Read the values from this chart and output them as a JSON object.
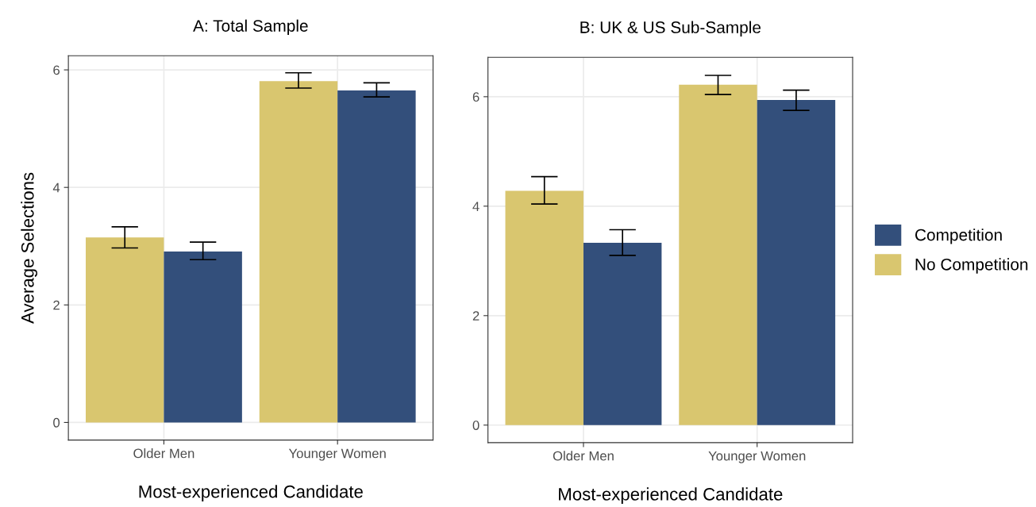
{
  "chart_data": [
    {
      "type": "bar",
      "title": "A: Total Sample",
      "xlabel": "Most-experienced Candidate",
      "ylabel": "Average Selections",
      "categories": [
        "Older Men",
        "Younger Women"
      ],
      "ylim": [
        -0.3,
        6.24
      ],
      "yticks": [
        0,
        2,
        4,
        6
      ],
      "grid": true,
      "legend": false,
      "series": [
        {
          "color": "#d9c66f",
          "values": [
            3.15,
            5.81
          ],
          "errors": [
            [
              2.97,
              3.33
            ],
            [
              5.69,
              5.95
            ]
          ]
        },
        {
          "color": "#334f7b",
          "values": [
            2.91,
            5.65
          ],
          "errors": [
            [
              2.77,
              3.07
            ],
            [
              5.54,
              5.78
            ]
          ]
        }
      ]
    },
    {
      "type": "bar",
      "title": "B: UK & US Sub-Sample",
      "xlabel": "Most-experienced Candidate",
      "categories": [
        "Older Men",
        "Younger Women"
      ],
      "ylim": [
        -0.32,
        6.72
      ],
      "yticks": [
        0,
        2,
        4,
        6
      ],
      "grid": true,
      "legend": "right",
      "series": [
        {
          "name": "No Competition",
          "color": "#d9c66f",
          "values": [
            4.28,
            6.22
          ],
          "errors": [
            [
              4.04,
              4.54
            ],
            [
              6.04,
              6.39
            ]
          ]
        },
        {
          "name": "Competition",
          "color": "#334f7b",
          "values": [
            3.33,
            5.94
          ],
          "errors": [
            [
              3.1,
              3.57
            ],
            [
              5.75,
              6.12
            ]
          ]
        }
      ]
    }
  ]
}
